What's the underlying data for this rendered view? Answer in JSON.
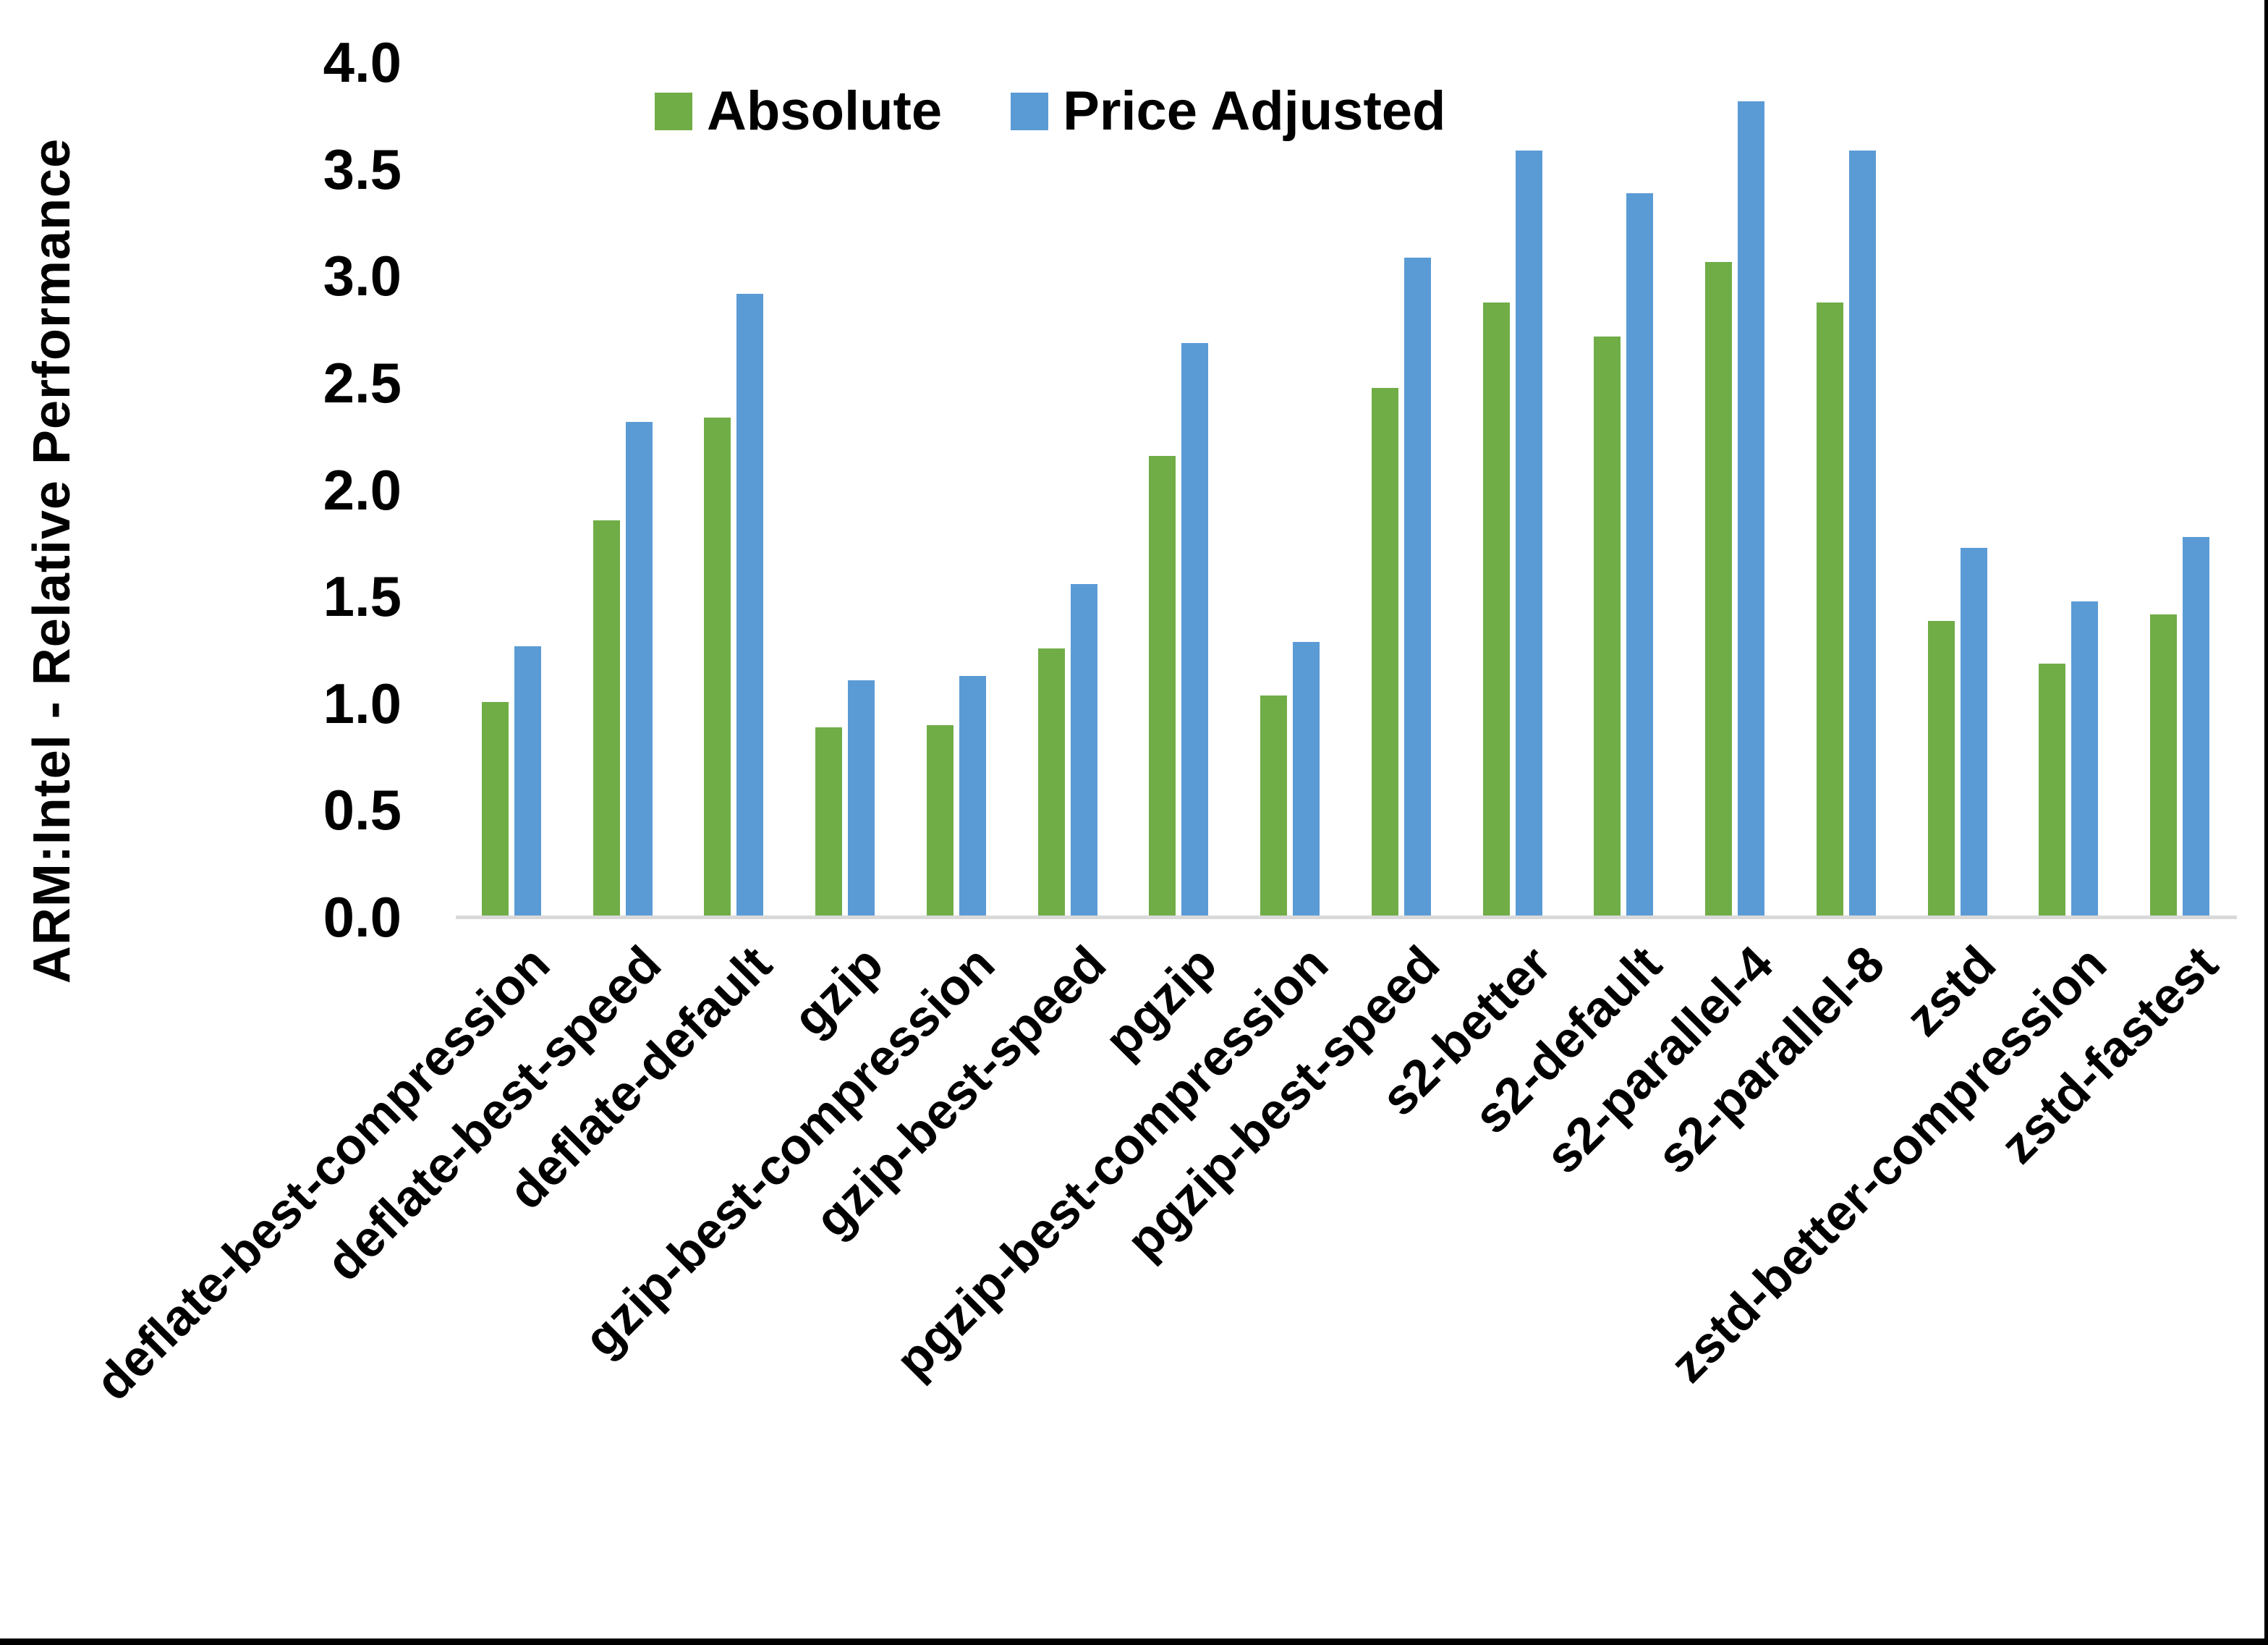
{
  "chart_data": {
    "type": "bar",
    "title": "",
    "xlabel": "",
    "ylabel": "ARM:Intel - Relative Performance",
    "ylim": [
      0,
      4
    ],
    "ytick_step": 0.5,
    "yticks": [
      "4.0",
      "3.5",
      "3.0",
      "2.5",
      "2.0",
      "1.5",
      "1.0",
      "0.5",
      "0.0"
    ],
    "grid": false,
    "legend_position": "top-center",
    "categories": [
      "deflate-best-compression",
      "deflate-best-speed",
      "deflate-default",
      "gzip",
      "gzip-best-compression",
      "gzip-best-speed",
      "pgzip",
      "pgzip-best-compression",
      "pgzip-best-speed",
      "s2-better",
      "s2-default",
      "s2-parallel-4",
      "s2-parallel-8",
      "zstd",
      "zstd-better-compression",
      "zstd-fastest"
    ],
    "series": [
      {
        "name": "Absolute",
        "color": "#70AD47",
        "values": [
          1.0,
          1.85,
          2.33,
          0.88,
          0.89,
          1.25,
          2.15,
          1.03,
          2.47,
          2.87,
          2.71,
          3.06,
          2.87,
          1.38,
          1.18,
          1.41
        ]
      },
      {
        "name": "Price Adjusted",
        "color": "#5B9BD5",
        "values": [
          1.26,
          2.31,
          2.91,
          1.1,
          1.12,
          1.55,
          2.68,
          1.28,
          3.08,
          3.58,
          3.38,
          3.81,
          3.58,
          1.72,
          1.47,
          1.77
        ]
      }
    ]
  },
  "colors": {
    "axis_line": "#D9D9D9",
    "text": "#000000",
    "frame_border": "#000000",
    "background": "#FFFFFF"
  }
}
